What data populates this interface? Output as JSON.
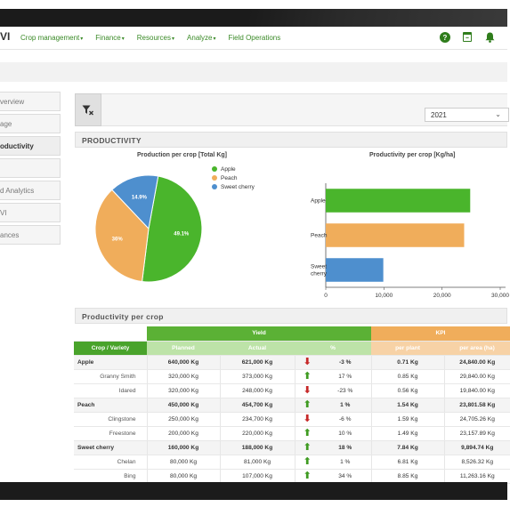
{
  "nav": {
    "brand": "VI",
    "menu": [
      {
        "label": "Crop management",
        "caret": "▾"
      },
      {
        "label": "Finance",
        "caret": "▾"
      },
      {
        "label": "Resources",
        "caret": "▾"
      },
      {
        "label": "Analyze",
        "caret": "▾"
      },
      {
        "label": "Field Operations",
        "caret": ""
      }
    ],
    "icons": [
      "help-icon",
      "calendar-icon",
      "bell-icon"
    ]
  },
  "sidebar": {
    "items": [
      {
        "label": "verview",
        "active": false
      },
      {
        "label": "age",
        "active": false
      },
      {
        "label": "oductivity",
        "active": true
      },
      {
        "label": "",
        "active": false
      },
      {
        "label": "d Analytics",
        "active": false
      },
      {
        "label": "VI",
        "active": false
      },
      {
        "label": "ances",
        "active": false
      }
    ]
  },
  "toolbar": {
    "filter_icon": "filter-clear-icon",
    "year": "2021"
  },
  "productivity": {
    "title": "PRODUCTIVITY"
  },
  "pie": {
    "title": "Production per crop [Total Kg]",
    "legend": [
      {
        "name": "Apple",
        "color": "#4ab52c"
      },
      {
        "name": "Peach",
        "color": "#f0ad5b"
      },
      {
        "name": "Sweet cherry",
        "color": "#4e8fce"
      }
    ]
  },
  "bars": {
    "title": "Productivity per crop [Kg/ha]"
  },
  "chart_data": [
    {
      "type": "pie",
      "title": "Production per crop [Total Kg]",
      "slices": [
        {
          "name": "Apple",
          "value": 49.1,
          "label": "49.1%",
          "color": "#4ab52c"
        },
        {
          "name": "Peach",
          "value": 36.0,
          "label": "36%",
          "color": "#f0ad5b"
        },
        {
          "name": "Sweet cherry",
          "value": 14.9,
          "label": "14.9%",
          "color": "#4e8fce"
        }
      ]
    },
    {
      "type": "bar",
      "orientation": "horizontal",
      "title": "Productivity per crop [Kg/ha]",
      "categories": [
        "Apple",
        "Peach",
        "Sweet cherry"
      ],
      "values": [
        24840,
        23801.58,
        9894.74
      ],
      "colors": [
        "#4ab52c",
        "#f0ad5b",
        "#4e8fce"
      ],
      "xlim": [
        0,
        30000
      ],
      "xticks": [
        "0",
        "10,000",
        "20,000",
        "30,000"
      ]
    }
  ],
  "table": {
    "title": "Productivity per crop",
    "group_yield": "Yield",
    "group_kpi": "KPI",
    "headers": [
      "Crop / Variety",
      "Planned",
      "Actual",
      "%",
      "per plant",
      "per area (ha)"
    ],
    "rows": [
      {
        "name": "Apple",
        "group": true,
        "planned": "640,000 Kg",
        "actual": "621,000 Kg",
        "trend": "down",
        "pct": "-3 %",
        "per_plant": "0.71 Kg",
        "per_area": "24,840.00 Kg"
      },
      {
        "name": "Granny Smith",
        "group": false,
        "planned": "320,000 Kg",
        "actual": "373,000 Kg",
        "trend": "up",
        "pct": "17 %",
        "per_plant": "0.85 Kg",
        "per_area": "29,840.00 Kg"
      },
      {
        "name": "Idared",
        "group": false,
        "planned": "320,000 Kg",
        "actual": "248,000 Kg",
        "trend": "down",
        "pct": "-23 %",
        "per_plant": "0.56 Kg",
        "per_area": "19,840.00 Kg"
      },
      {
        "name": "Peach",
        "group": true,
        "planned": "450,000 Kg",
        "actual": "454,700 Kg",
        "trend": "up",
        "pct": "1 %",
        "per_plant": "1.54 Kg",
        "per_area": "23,801.58 Kg"
      },
      {
        "name": "Clingstone",
        "group": false,
        "planned": "250,000 Kg",
        "actual": "234,700 Kg",
        "trend": "down",
        "pct": "-6 %",
        "per_plant": "1.59 Kg",
        "per_area": "24,705.26 Kg"
      },
      {
        "name": "Freestone",
        "group": false,
        "planned": "200,000 Kg",
        "actual": "220,000 Kg",
        "trend": "up",
        "pct": "10 %",
        "per_plant": "1.49 Kg",
        "per_area": "23,157.89 Kg"
      },
      {
        "name": "Sweet cherry",
        "group": true,
        "planned": "160,000 Kg",
        "actual": "188,000 Kg",
        "trend": "up",
        "pct": "18 %",
        "per_plant": "7.84 Kg",
        "per_area": "9,894.74 Kg"
      },
      {
        "name": "Chelan",
        "group": false,
        "planned": "80,000 Kg",
        "actual": "81,000 Kg",
        "trend": "up",
        "pct": "1 %",
        "per_plant": "6.81 Kg",
        "per_area": "8,526.32 Kg"
      },
      {
        "name": "Bing",
        "group": false,
        "planned": "80,000 Kg",
        "actual": "107,000 Kg",
        "trend": "up",
        "pct": "34 %",
        "per_plant": "8.85 Kg",
        "per_area": "11,263.16 Kg"
      }
    ]
  }
}
